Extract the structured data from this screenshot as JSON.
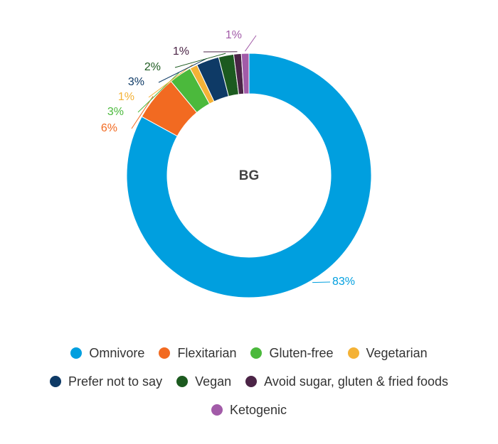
{
  "chart_data": {
    "type": "donut",
    "center_label": "BG",
    "categories": [
      "Omnivore",
      "Flexitarian",
      "Gluten-free",
      "Vegetarian",
      "Prefer not to say",
      "Vegan",
      "Avoid sugar, gluten & fried foods",
      "Ketogenic"
    ],
    "values": [
      83,
      6,
      3,
      1,
      3,
      2,
      1,
      1
    ],
    "value_labels": [
      "83%",
      "6%",
      "3%",
      "1%",
      "3%",
      "2%",
      "1%",
      "1%"
    ],
    "colors": [
      "#009fdf",
      "#f26a21",
      "#4bb93c",
      "#f4b236",
      "#0e3a66",
      "#1c5a1f",
      "#4b2446",
      "#a25ba8"
    ]
  }
}
